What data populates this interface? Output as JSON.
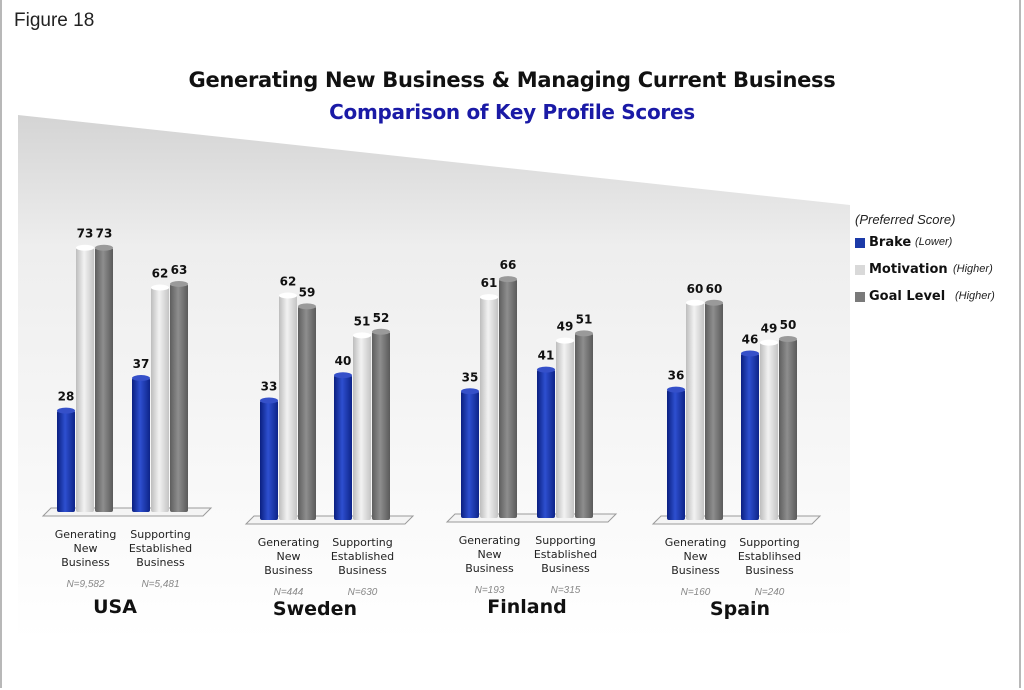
{
  "figure_label": "Figure 18",
  "chart_data": {
    "type": "bar",
    "title": "Generating New Business & Managing Current Business",
    "subtitle": "Comparison of Key Profile Scores",
    "legend_header": "(Preferred Score)",
    "legend_position": "right",
    "series": [
      {
        "name": "Brake",
        "note": "(Lower)",
        "color": "#1c3aa8"
      },
      {
        "name": "Motivation",
        "note": "(Higher)",
        "color": "#d9d9d9"
      },
      {
        "name": "Goal Level",
        "note": "(Higher)",
        "color": "#7a7a7a"
      }
    ],
    "countries": [
      {
        "name": "USA",
        "groups": [
          {
            "label": [
              "Generating",
              "New",
              "Business"
            ],
            "n": "N=9,582",
            "values": [
              28,
              73,
              73
            ]
          },
          {
            "label": [
              "Supporting",
              "Established",
              "Business"
            ],
            "n": "N=5,481",
            "values": [
              37,
              62,
              63
            ]
          }
        ]
      },
      {
        "name": "Sweden",
        "groups": [
          {
            "label": [
              "Generating",
              "New",
              "Business"
            ],
            "n": "N=444",
            "values": [
              33,
              62,
              59
            ]
          },
          {
            "label": [
              "Supporting",
              "Established",
              "Business"
            ],
            "n": "N=630",
            "values": [
              40,
              51,
              52
            ]
          }
        ]
      },
      {
        "name": "Finland",
        "groups": [
          {
            "label": [
              "Generating",
              "New",
              "Business"
            ],
            "n": "N=193",
            "values": [
              35,
              61,
              66
            ]
          },
          {
            "label": [
              "Supporting",
              "Established",
              "Business"
            ],
            "n": "N=315",
            "values": [
              41,
              49,
              51
            ]
          }
        ]
      },
      {
        "name": "Spain",
        "groups": [
          {
            "label": [
              "Generating",
              "New",
              "Business"
            ],
            "n": "N=160",
            "values": [
              36,
              60,
              60
            ]
          },
          {
            "label": [
              "Supporting",
              "Establihsed",
              "Business"
            ],
            "n": "N=240",
            "values": [
              46,
              49,
              50
            ]
          }
        ]
      }
    ]
  }
}
